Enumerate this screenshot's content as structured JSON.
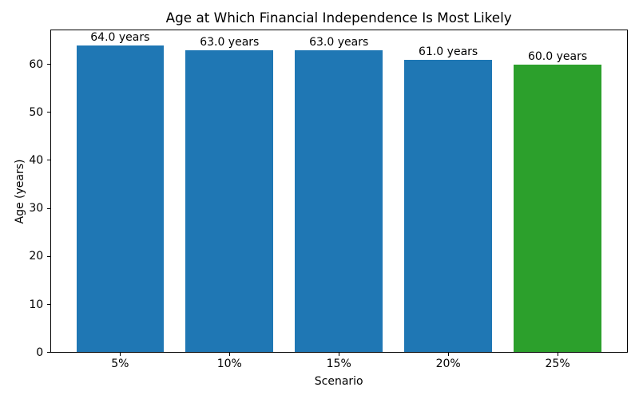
{
  "chart_data": {
    "type": "bar",
    "title": "Age at Which Financial Independence Is Most Likely",
    "xlabel": "Scenario",
    "ylabel": "Age (years)",
    "categories": [
      "5%",
      "10%",
      "15%",
      "20%",
      "25%"
    ],
    "values": [
      64.0,
      63.0,
      63.0,
      61.0,
      60.0
    ],
    "bar_labels": [
      "64.0 years",
      "63.0 years",
      "63.0 years",
      "61.0 years",
      "60.0 years"
    ],
    "bar_colors": [
      "#1f77b4",
      "#1f77b4",
      "#1f77b4",
      "#1f77b4",
      "#2ca02c"
    ],
    "ylim": [
      0,
      67.2
    ],
    "yticks": [
      0,
      10,
      20,
      30,
      40,
      50,
      60
    ],
    "grid": "off",
    "legend": "none"
  }
}
